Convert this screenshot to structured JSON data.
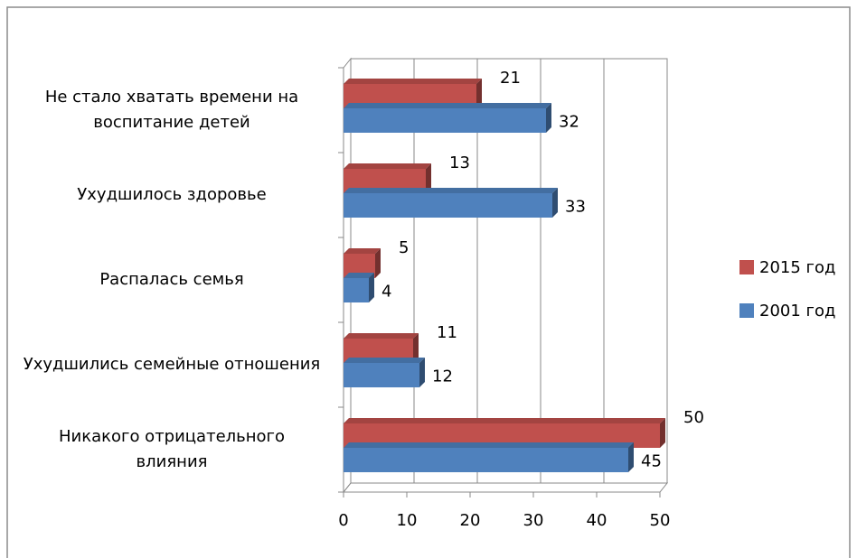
{
  "chart_data": {
    "type": "bar",
    "orientation": "horizontal",
    "categories": [
      "Не стало хватать времени на воспитание детей",
      "Ухудшилось здоровье",
      "Распалась семья",
      "Ухудшились семейные отношения",
      "Никакого отрицательного влияния"
    ],
    "series": [
      {
        "name": "2015 год",
        "color": "#c0504d",
        "values": [
          21,
          13,
          5,
          11,
          50
        ]
      },
      {
        "name": "2001 год",
        "color": "#4f81bd",
        "values": [
          32,
          33,
          4,
          12,
          45
        ]
      }
    ],
    "xlim": [
      0,
      50
    ],
    "xticks": [
      0,
      10,
      20,
      30,
      40,
      50
    ],
    "grid": true,
    "legend": "right"
  }
}
